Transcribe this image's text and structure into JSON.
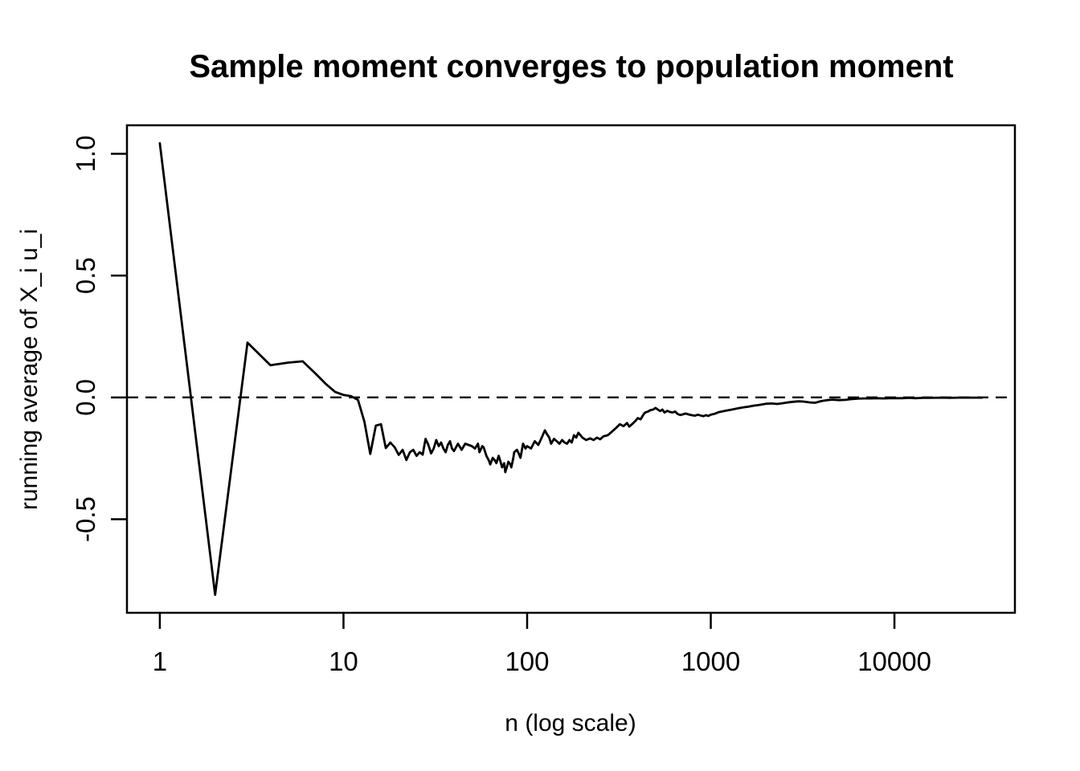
{
  "chart_data": {
    "type": "line",
    "title": "Sample moment converges to population moment",
    "xlabel": "n (log scale)",
    "ylabel": "running average of X_i u_i",
    "xscale": "log",
    "xlim_log10": [
      -0.179,
      4.656
    ],
    "ylim": [
      -0.884,
      1.117
    ],
    "grid": false,
    "legend": "none",
    "colors": {
      "line": "#000000",
      "reference": "#000000",
      "background": "#ffffff"
    },
    "x_ticks": [
      {
        "value": 1,
        "label": "1"
      },
      {
        "value": 10,
        "label": "10"
      },
      {
        "value": 100,
        "label": "100"
      },
      {
        "value": 1000,
        "label": "1000"
      },
      {
        "value": 10000,
        "label": "10000"
      }
    ],
    "y_ticks": [
      {
        "value": -0.5,
        "label": "-0.5"
      },
      {
        "value": 0.0,
        "label": "0.0"
      },
      {
        "value": 0.5,
        "label": "0.5"
      },
      {
        "value": 1.0,
        "label": "1.0"
      }
    ],
    "reference_line": {
      "y": 0.0,
      "style": "dashed"
    },
    "series": [
      {
        "name": "running average of X_i u_i",
        "color": "#000000",
        "points": [
          [
            1,
            1.043
          ],
          [
            2,
            -0.81
          ],
          [
            3,
            0.225
          ],
          [
            4,
            0.132
          ],
          [
            5,
            0.143
          ],
          [
            6,
            0.148
          ],
          [
            7,
            0.1
          ],
          [
            8,
            0.056
          ],
          [
            9,
            0.023
          ],
          [
            10,
            0.01
          ],
          [
            11,
            0.005
          ],
          [
            12,
            -0.01
          ],
          [
            13,
            -0.1
          ],
          [
            14,
            -0.232
          ],
          [
            15,
            -0.116
          ],
          [
            16,
            -0.11
          ],
          [
            17,
            -0.208
          ],
          [
            18,
            -0.185
          ],
          [
            19,
            -0.205
          ],
          [
            20,
            -0.236
          ],
          [
            21,
            -0.215
          ],
          [
            22,
            -0.257
          ],
          [
            23,
            -0.225
          ],
          [
            24,
            -0.215
          ],
          [
            25,
            -0.24
          ],
          [
            26,
            -0.225
          ],
          [
            27,
            -0.235
          ],
          [
            28,
            -0.17
          ],
          [
            29,
            -0.195
          ],
          [
            30,
            -0.23
          ],
          [
            31,
            -0.21
          ],
          [
            32,
            -0.175
          ],
          [
            33,
            -0.2
          ],
          [
            34,
            -0.185
          ],
          [
            35,
            -0.21
          ],
          [
            36,
            -0.225
          ],
          [
            37,
            -0.195
          ],
          [
            38,
            -0.18
          ],
          [
            39,
            -0.21
          ],
          [
            40,
            -0.22
          ],
          [
            42,
            -0.19
          ],
          [
            44,
            -0.215
          ],
          [
            46,
            -0.19
          ],
          [
            48,
            -0.195
          ],
          [
            50,
            -0.2
          ],
          [
            52,
            -0.21
          ],
          [
            54,
            -0.19
          ],
          [
            55,
            -0.225
          ],
          [
            57,
            -0.2
          ],
          [
            58,
            -0.205
          ],
          [
            60,
            -0.24
          ],
          [
            62,
            -0.26
          ],
          [
            63,
            -0.275
          ],
          [
            65,
            -0.248
          ],
          [
            67,
            -0.26
          ],
          [
            68,
            -0.27
          ],
          [
            70,
            -0.24
          ],
          [
            72,
            -0.27
          ],
          [
            73,
            -0.287
          ],
          [
            75,
            -0.27
          ],
          [
            76,
            -0.307
          ],
          [
            78,
            -0.28
          ],
          [
            79,
            -0.264
          ],
          [
            81,
            -0.275
          ],
          [
            82,
            -0.287
          ],
          [
            84,
            -0.25
          ],
          [
            85,
            -0.225
          ],
          [
            88,
            -0.215
          ],
          [
            90,
            -0.23
          ],
          [
            92,
            -0.248
          ],
          [
            95,
            -0.19
          ],
          [
            98,
            -0.21
          ],
          [
            100,
            -0.2
          ],
          [
            105,
            -0.21
          ],
          [
            110,
            -0.18
          ],
          [
            115,
            -0.195
          ],
          [
            120,
            -0.165
          ],
          [
            125,
            -0.135
          ],
          [
            128,
            -0.15
          ],
          [
            132,
            -0.165
          ],
          [
            135,
            -0.19
          ],
          [
            140,
            -0.17
          ],
          [
            145,
            -0.18
          ],
          [
            150,
            -0.19
          ],
          [
            155,
            -0.175
          ],
          [
            160,
            -0.185
          ],
          [
            165,
            -0.19
          ],
          [
            170,
            -0.175
          ],
          [
            175,
            -0.185
          ],
          [
            180,
            -0.155
          ],
          [
            185,
            -0.165
          ],
          [
            190,
            -0.145
          ],
          [
            195,
            -0.155
          ],
          [
            200,
            -0.165
          ],
          [
            210,
            -0.175
          ],
          [
            220,
            -0.168
          ],
          [
            230,
            -0.175
          ],
          [
            240,
            -0.165
          ],
          [
            250,
            -0.172
          ],
          [
            260,
            -0.16
          ],
          [
            275,
            -0.155
          ],
          [
            290,
            -0.14
          ],
          [
            305,
            -0.125
          ],
          [
            320,
            -0.11
          ],
          [
            335,
            -0.118
          ],
          [
            350,
            -0.105
          ],
          [
            360,
            -0.12
          ],
          [
            375,
            -0.108
          ],
          [
            390,
            -0.095
          ],
          [
            400,
            -0.085
          ],
          [
            415,
            -0.09
          ],
          [
            430,
            -0.07
          ],
          [
            440,
            -0.062
          ],
          [
            455,
            -0.058
          ],
          [
            470,
            -0.052
          ],
          [
            485,
            -0.05
          ],
          [
            500,
            -0.043
          ],
          [
            515,
            -0.05
          ],
          [
            530,
            -0.056
          ],
          [
            545,
            -0.05
          ],
          [
            560,
            -0.062
          ],
          [
            580,
            -0.055
          ],
          [
            600,
            -0.06
          ],
          [
            620,
            -0.062
          ],
          [
            640,
            -0.058
          ],
          [
            660,
            -0.068
          ],
          [
            680,
            -0.072
          ],
          [
            700,
            -0.07
          ],
          [
            730,
            -0.066
          ],
          [
            760,
            -0.07
          ],
          [
            790,
            -0.073
          ],
          [
            820,
            -0.075
          ],
          [
            850,
            -0.071
          ],
          [
            880,
            -0.074
          ],
          [
            910,
            -0.077
          ],
          [
            940,
            -0.073
          ],
          [
            970,
            -0.076
          ],
          [
            1000,
            -0.071
          ],
          [
            1050,
            -0.067
          ],
          [
            1100,
            -0.061
          ],
          [
            1150,
            -0.058
          ],
          [
            1200,
            -0.055
          ],
          [
            1300,
            -0.05
          ],
          [
            1400,
            -0.045
          ],
          [
            1500,
            -0.041
          ],
          [
            1600,
            -0.038
          ],
          [
            1700,
            -0.034
          ],
          [
            1800,
            -0.032
          ],
          [
            1900,
            -0.029
          ],
          [
            2000,
            -0.026
          ],
          [
            2150,
            -0.025
          ],
          [
            2300,
            -0.027
          ],
          [
            2450,
            -0.024
          ],
          [
            2600,
            -0.021
          ],
          [
            2800,
            -0.018
          ],
          [
            3000,
            -0.016
          ],
          [
            3200,
            -0.017
          ],
          [
            3500,
            -0.021
          ],
          [
            3700,
            -0.022
          ],
          [
            4000,
            -0.015
          ],
          [
            4300,
            -0.011
          ],
          [
            4600,
            -0.009
          ],
          [
            5000,
            -0.011
          ],
          [
            5400,
            -0.01
          ],
          [
            5800,
            -0.007
          ],
          [
            6300,
            -0.005
          ],
          [
            6800,
            -0.004
          ],
          [
            7400,
            -0.004
          ],
          [
            8000,
            -0.003
          ],
          [
            8700,
            -0.004
          ],
          [
            9400,
            -0.003
          ],
          [
            10000,
            -0.003
          ],
          [
            11000,
            -0.003
          ],
          [
            12000,
            -0.002
          ],
          [
            13000,
            -0.003
          ],
          [
            14500,
            -0.002
          ],
          [
            16000,
            -0.002
          ],
          [
            18000,
            -0.001
          ],
          [
            20000,
            -0.002
          ],
          [
            22500,
            -0.001
          ],
          [
            25000,
            -0.001
          ],
          [
            27500,
            -0.001
          ],
          [
            30000,
            -0.001
          ]
        ]
      }
    ]
  }
}
